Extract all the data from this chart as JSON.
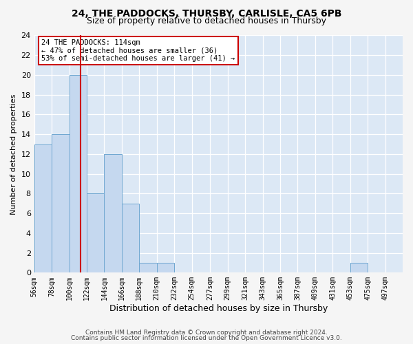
{
  "title": "24, THE PADDOCKS, THURSBY, CARLISLE, CA5 6PB",
  "subtitle": "Size of property relative to detached houses in Thursby",
  "xlabel": "Distribution of detached houses by size in Thursby",
  "ylabel": "Number of detached properties",
  "bin_left_edges": [
    56,
    78,
    100,
    122,
    144,
    166,
    188,
    210,
    232,
    254,
    277,
    299,
    321,
    343,
    365,
    387,
    409,
    431,
    453,
    475
  ],
  "bar_heights": [
    13,
    14,
    20,
    8,
    12,
    7,
    1,
    1,
    0,
    0,
    0,
    0,
    0,
    0,
    0,
    0,
    0,
    0,
    1,
    0
  ],
  "bin_width": 22,
  "bar_color": "#c5d8ef",
  "bar_edgecolor": "#6ea6d0",
  "subject_line_x": 114,
  "subject_line_color": "#cc0000",
  "annotation_text": "24 THE PADDOCKS: 114sqm\n← 47% of detached houses are smaller (36)\n53% of semi-detached houses are larger (41) →",
  "annotation_box_color": "#cc0000",
  "ylim": [
    0,
    24
  ],
  "yticks": [
    0,
    2,
    4,
    6,
    8,
    10,
    12,
    14,
    16,
    18,
    20,
    22,
    24
  ],
  "xlim_left": 56,
  "xlim_right": 519,
  "tick_labels": [
    "56sqm",
    "78sqm",
    "100sqm",
    "122sqm",
    "144sqm",
    "166sqm",
    "188sqm",
    "210sqm",
    "232sqm",
    "254sqm",
    "277sqm",
    "299sqm",
    "321sqm",
    "343sqm",
    "365sqm",
    "387sqm",
    "409sqm",
    "431sqm",
    "453sqm",
    "475sqm",
    "497sqm"
  ],
  "tick_positions": [
    56,
    78,
    100,
    122,
    144,
    166,
    188,
    210,
    232,
    254,
    277,
    299,
    321,
    343,
    365,
    387,
    409,
    431,
    453,
    475,
    497
  ],
  "footer_line1": "Contains HM Land Registry data © Crown copyright and database right 2024.",
  "footer_line2": "Contains public sector information licensed under the Open Government Licence v3.0.",
  "fig_facecolor": "#f5f5f5",
  "ax_facecolor": "#dce8f5",
  "grid_color": "#ffffff",
  "title_fontsize": 10,
  "subtitle_fontsize": 9,
  "ylabel_fontsize": 8,
  "xlabel_fontsize": 9,
  "tick_fontsize": 7,
  "ytick_fontsize": 8,
  "footer_fontsize": 6.5,
  "annotation_fontsize": 7.5
}
